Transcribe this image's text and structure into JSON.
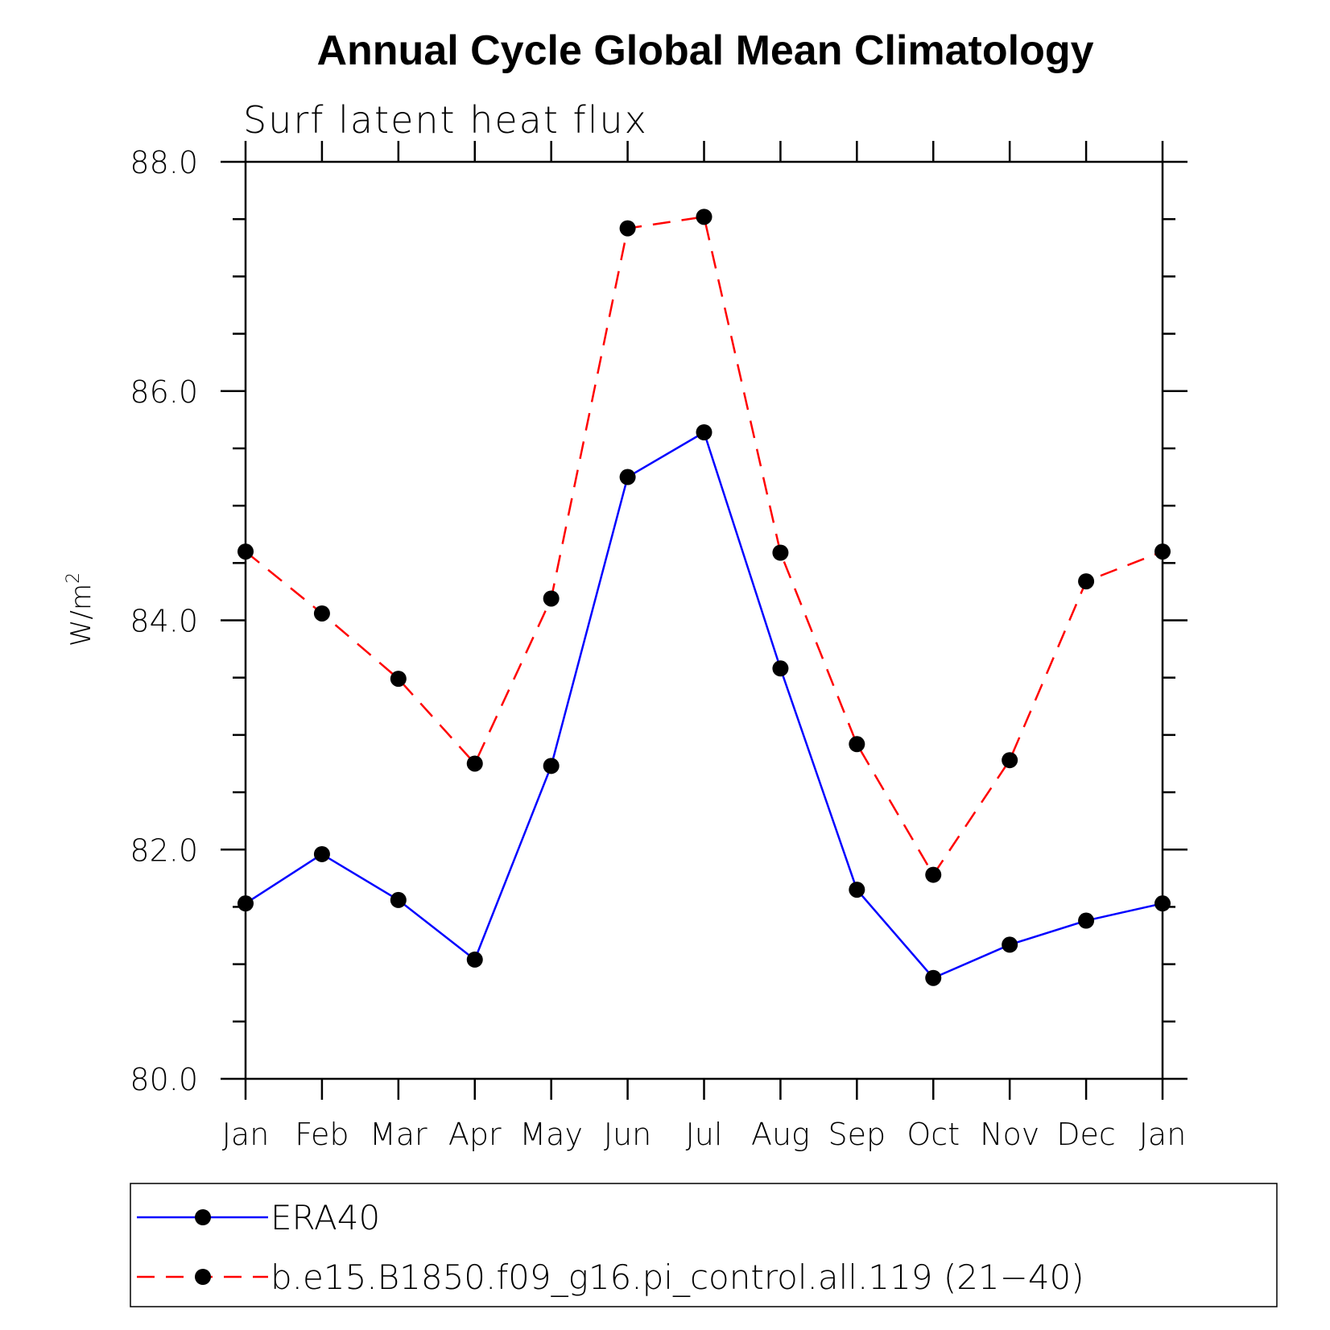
{
  "chart_data": {
    "type": "line",
    "title": "Annual Cycle Global Mean Climatology",
    "subtitle": "Surf latent heat flux",
    "xlabel": "",
    "ylabel": "W/m",
    "ylabel_superscript": "2",
    "categories": [
      "Jan",
      "Feb",
      "Mar",
      "Apr",
      "May",
      "Jun",
      "Jul",
      "Aug",
      "Sep",
      "Oct",
      "Nov",
      "Dec",
      "Jan"
    ],
    "ylim": [
      80.0,
      88.0
    ],
    "yticks": [
      "80.0",
      "82.0",
      "84.0",
      "86.0",
      "88.0"
    ],
    "grid": false,
    "legend_position": "bottom",
    "series": [
      {
        "name": "ERA40",
        "color": "#0000ff",
        "line_style": "solid",
        "marker": "filled-circle",
        "values": [
          81.53,
          81.96,
          81.56,
          81.04,
          82.73,
          85.25,
          85.64,
          83.58,
          81.65,
          80.88,
          81.17,
          81.38,
          81.53
        ]
      },
      {
        "name": "b.e15.B1850.f09_g16.pi_control.all.119 (21−40)",
        "color": "#ff0000",
        "line_style": "dashed",
        "marker": "filled-circle",
        "values": [
          84.6,
          84.06,
          83.49,
          82.75,
          84.19,
          87.42,
          87.52,
          84.59,
          82.92,
          81.78,
          82.78,
          84.34,
          84.6
        ]
      }
    ]
  }
}
